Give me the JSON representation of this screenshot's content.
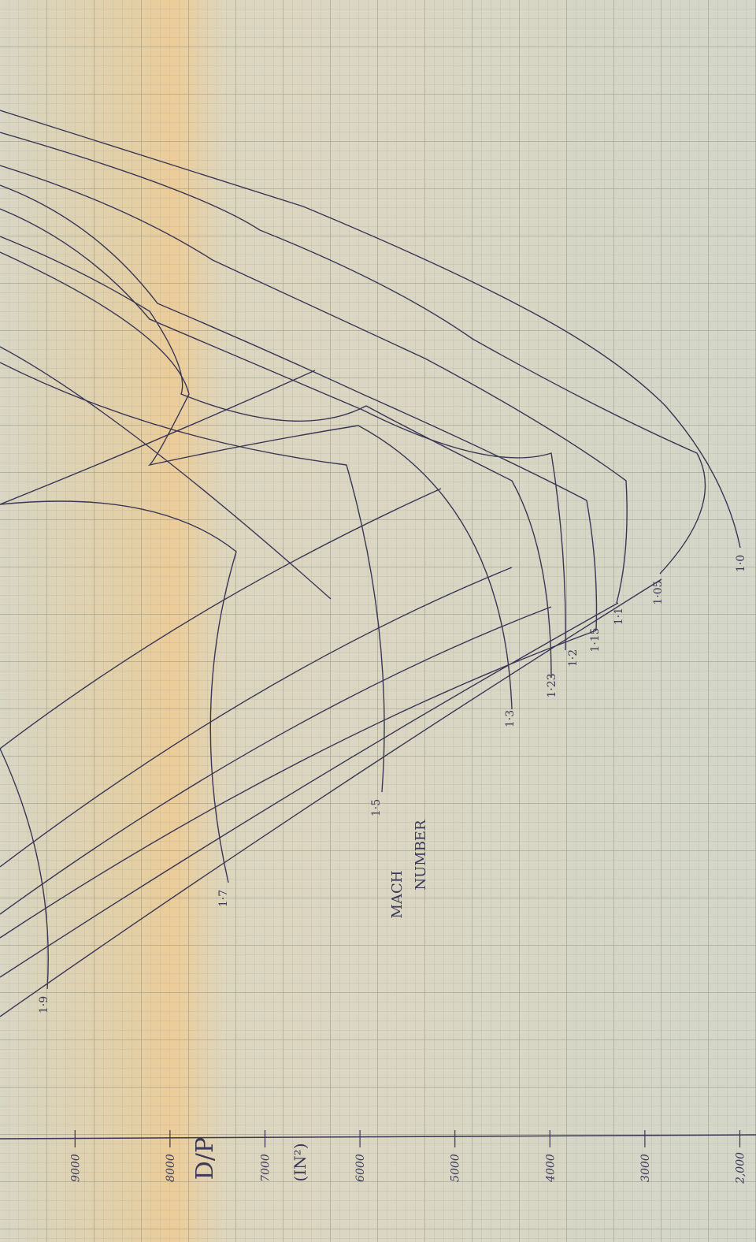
{
  "axis": {
    "title": "D/P",
    "unit": "(IN²)",
    "lim": [
      9790,
      1830
    ],
    "ticks": [
      9000,
      8000,
      7000,
      6000,
      5000,
      4000,
      3000,
      {
        "value": 2000,
        "label": "2,000"
      }
    ]
  },
  "mach_title": [
    "MACH",
    "NUMBER"
  ],
  "mach_labels": [
    "1·0",
    "1·05",
    "1·1",
    "1·15",
    "1·2",
    "1·23",
    "1·3",
    "1·5",
    "1·7",
    "1·9"
  ]
}
